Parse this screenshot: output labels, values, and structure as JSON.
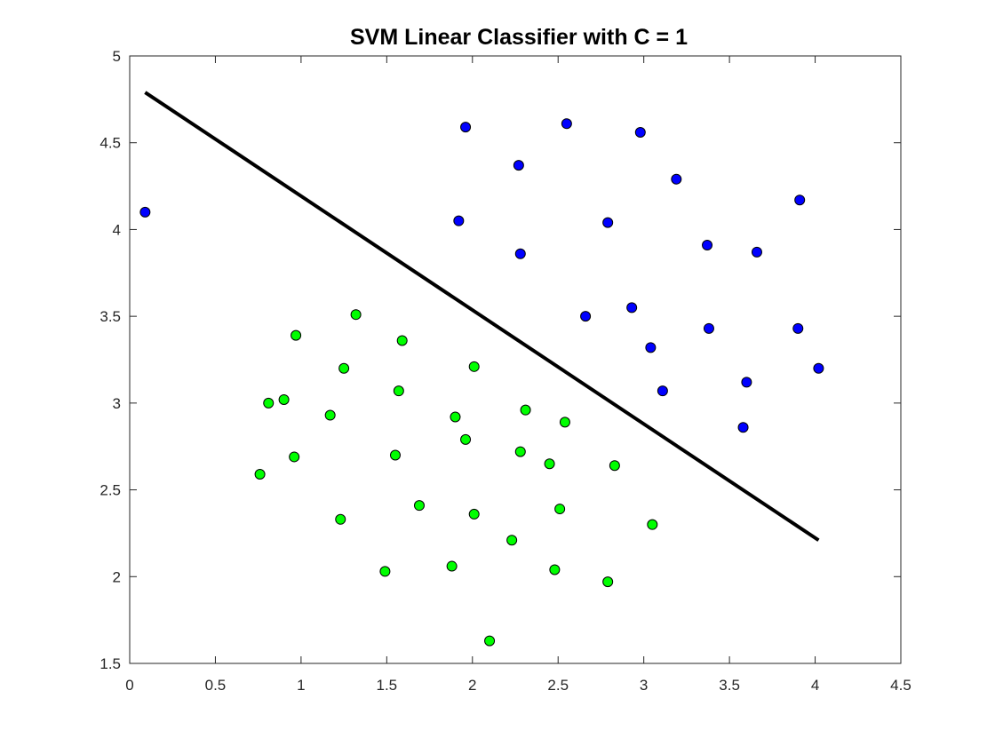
{
  "chart_data": {
    "type": "scatter",
    "title": "SVM Linear Classifier with C = 1",
    "xlabel": "",
    "ylabel": "",
    "xlim": [
      0,
      4.5
    ],
    "ylim": [
      1.5,
      5
    ],
    "x_ticks": [
      "0",
      "0.5",
      "1",
      "1.5",
      "2",
      "2.5",
      "3",
      "3.5",
      "4",
      "4.5"
    ],
    "y_ticks": [
      "1.5",
      "2",
      "2.5",
      "3",
      "3.5",
      "4",
      "4.5",
      "5"
    ],
    "grid": false,
    "legend": "none",
    "colors": {
      "class_positive": "#0000ff",
      "class_negative": "#00ff00",
      "marker_edge": "#000000",
      "decision_boundary": "#000000",
      "axes": "#262626"
    },
    "series": [
      {
        "values": [
          [
            0.09,
            4.1
          ],
          [
            1.96,
            4.59
          ],
          [
            2.55,
            4.61
          ],
          [
            2.98,
            4.56
          ],
          [
            2.27,
            4.37
          ],
          [
            3.19,
            4.29
          ],
          [
            3.91,
            4.17
          ],
          [
            1.92,
            4.05
          ],
          [
            2.79,
            4.04
          ],
          [
            3.37,
            3.91
          ],
          [
            3.66,
            3.87
          ],
          [
            2.28,
            3.86
          ],
          [
            2.66,
            3.5
          ],
          [
            2.93,
            3.55
          ],
          [
            3.38,
            3.43
          ],
          [
            3.9,
            3.43
          ],
          [
            3.04,
            3.32
          ],
          [
            4.02,
            3.2
          ],
          [
            3.6,
            3.12
          ],
          [
            3.11,
            3.07
          ],
          [
            3.58,
            2.86
          ]
        ]
      },
      {
        "values": [
          [
            1.32,
            3.51
          ],
          [
            0.97,
            3.39
          ],
          [
            1.59,
            3.36
          ],
          [
            2.01,
            3.21
          ],
          [
            1.25,
            3.2
          ],
          [
            1.57,
            3.07
          ],
          [
            0.9,
            3.02
          ],
          [
            0.81,
            3.0
          ],
          [
            2.31,
            2.96
          ],
          [
            1.17,
            2.93
          ],
          [
            1.9,
            2.92
          ],
          [
            2.54,
            2.89
          ],
          [
            1.96,
            2.79
          ],
          [
            2.28,
            2.72
          ],
          [
            0.96,
            2.69
          ],
          [
            1.55,
            2.7
          ],
          [
            2.45,
            2.65
          ],
          [
            2.83,
            2.64
          ],
          [
            0.76,
            2.59
          ],
          [
            1.69,
            2.41
          ],
          [
            2.51,
            2.39
          ],
          [
            2.01,
            2.36
          ],
          [
            1.23,
            2.33
          ],
          [
            3.05,
            2.3
          ],
          [
            2.23,
            2.21
          ],
          [
            1.88,
            2.06
          ],
          [
            1.49,
            2.03
          ],
          [
            2.48,
            2.04
          ],
          [
            2.79,
            1.97
          ],
          [
            2.1,
            1.63
          ]
        ]
      }
    ],
    "decision_boundary": {
      "x": [
        0.09,
        4.02
      ],
      "y": [
        4.79,
        2.21
      ]
    }
  }
}
